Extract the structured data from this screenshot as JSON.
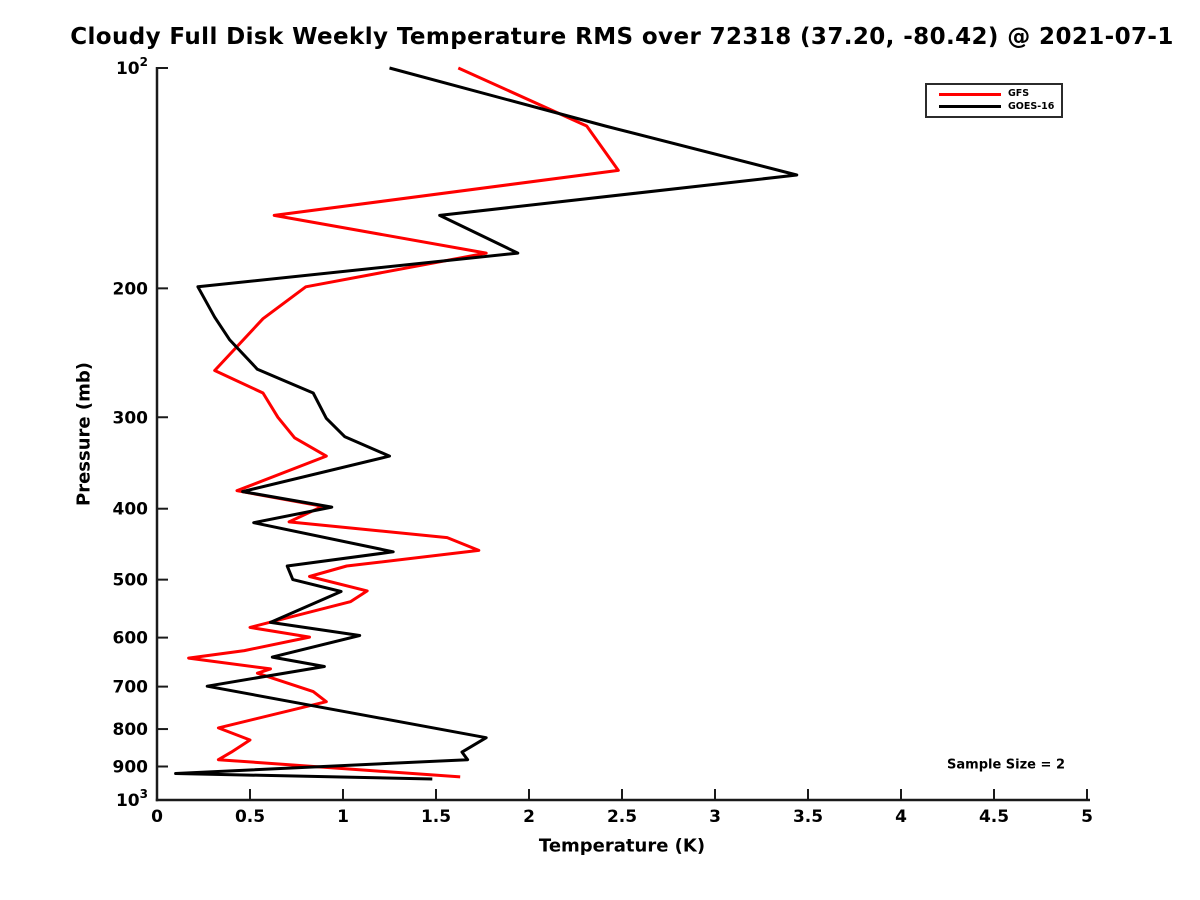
{
  "title": "Cloudy Full Disk Weekly Temperature RMS over 72318 (37.20, -80.42) @ 2021-07-1",
  "axes": {
    "xlabel": "Temperature (K)",
    "ylabel": "Pressure (mb)",
    "x_range": [
      0,
      5
    ],
    "y_range": [
      100,
      1000
    ],
    "y_scale": "log",
    "y_inverted": true,
    "x_ticks": [
      {
        "value": 0,
        "label": "0"
      },
      {
        "value": 0.5,
        "label": "0.5"
      },
      {
        "value": 1,
        "label": "1"
      },
      {
        "value": 1.5,
        "label": "1.5"
      },
      {
        "value": 2,
        "label": "2"
      },
      {
        "value": 2.5,
        "label": "2.5"
      },
      {
        "value": 3,
        "label": "3"
      },
      {
        "value": 3.5,
        "label": "3.5"
      },
      {
        "value": 4,
        "label": "4"
      },
      {
        "value": 4.5,
        "label": "4.5"
      },
      {
        "value": 5,
        "label": "5"
      }
    ],
    "y_ticks": [
      {
        "value": 100,
        "label": "10^2"
      },
      {
        "value": 200,
        "label": "200"
      },
      {
        "value": 300,
        "label": "300"
      },
      {
        "value": 400,
        "label": "400"
      },
      {
        "value": 500,
        "label": "500"
      },
      {
        "value": 600,
        "label": "600"
      },
      {
        "value": 700,
        "label": "700"
      },
      {
        "value": 800,
        "label": "800"
      },
      {
        "value": 900,
        "label": "900"
      },
      {
        "value": 1000,
        "label": "10^3"
      }
    ]
  },
  "legend": {
    "items": [
      {
        "label": "GFS",
        "color": "#ff0000"
      },
      {
        "label": "GOES-16",
        "color": "#000000"
      }
    ]
  },
  "annotation": "Sample Size = 2",
  "chart_data": {
    "type": "line",
    "title": "Cloudy Full Disk Weekly Temperature RMS over 72318 (37.20, -80.42) @ 2021-07-1",
    "xlabel": "Temperature (K)",
    "ylabel": "Pressure (mb)",
    "xlim": [
      0,
      5
    ],
    "ylim": [
      100,
      1000
    ],
    "grid": false,
    "legend_position": "upper right",
    "series": [
      {
        "name": "GFS",
        "color": "#ff0000",
        "points_T_P": [
          [
            1.62,
            100
          ],
          [
            2.31,
            120
          ],
          [
            2.48,
            138
          ],
          [
            0.63,
            159
          ],
          [
            1.77,
            179
          ],
          [
            0.8,
            199
          ],
          [
            0.57,
            220
          ],
          [
            0.31,
            259
          ],
          [
            0.57,
            278
          ],
          [
            0.65,
            300
          ],
          [
            0.74,
            320
          ],
          [
            0.91,
            339
          ],
          [
            0.43,
            378
          ],
          [
            0.89,
            397
          ],
          [
            0.71,
            417
          ],
          [
            1.56,
            438
          ],
          [
            1.73,
            456
          ],
          [
            1.02,
            479
          ],
          [
            0.82,
            495
          ],
          [
            1.13,
            518
          ],
          [
            1.04,
            536
          ],
          [
            0.5,
            581
          ],
          [
            0.82,
            599
          ],
          [
            0.47,
            625
          ],
          [
            0.17,
            640
          ],
          [
            0.61,
            662
          ],
          [
            0.54,
            671
          ],
          [
            0.84,
            711
          ],
          [
            0.91,
            734
          ],
          [
            0.33,
            797
          ],
          [
            0.5,
            828
          ],
          [
            0.4,
            860
          ],
          [
            0.33,
            881
          ],
          [
            1.63,
            930
          ]
        ]
      },
      {
        "name": "GOES-16",
        "color": "#000000",
        "points_T_P": [
          [
            1.25,
            100
          ],
          [
            2.41,
            120
          ],
          [
            3.44,
            140
          ],
          [
            1.52,
            159
          ],
          [
            1.94,
            179
          ],
          [
            0.22,
            199
          ],
          [
            0.31,
            219
          ],
          [
            0.39,
            235
          ],
          [
            0.54,
            258
          ],
          [
            0.84,
            278
          ],
          [
            0.91,
            301
          ],
          [
            1.01,
            319
          ],
          [
            1.25,
            339
          ],
          [
            0.46,
            379
          ],
          [
            0.94,
            398
          ],
          [
            0.52,
            418
          ],
          [
            1.27,
            458
          ],
          [
            0.7,
            479
          ],
          [
            0.73,
            500
          ],
          [
            0.99,
            519
          ],
          [
            0.61,
            572
          ],
          [
            1.09,
            596
          ],
          [
            0.62,
            638
          ],
          [
            0.9,
            657
          ],
          [
            0.27,
            699
          ],
          [
            1.77,
            822
          ],
          [
            1.64,
            860
          ],
          [
            1.67,
            881
          ],
          [
            0.1,
            920
          ],
          [
            1.48,
            936
          ]
        ]
      }
    ],
    "annotations": [
      "Sample Size = 2"
    ]
  }
}
